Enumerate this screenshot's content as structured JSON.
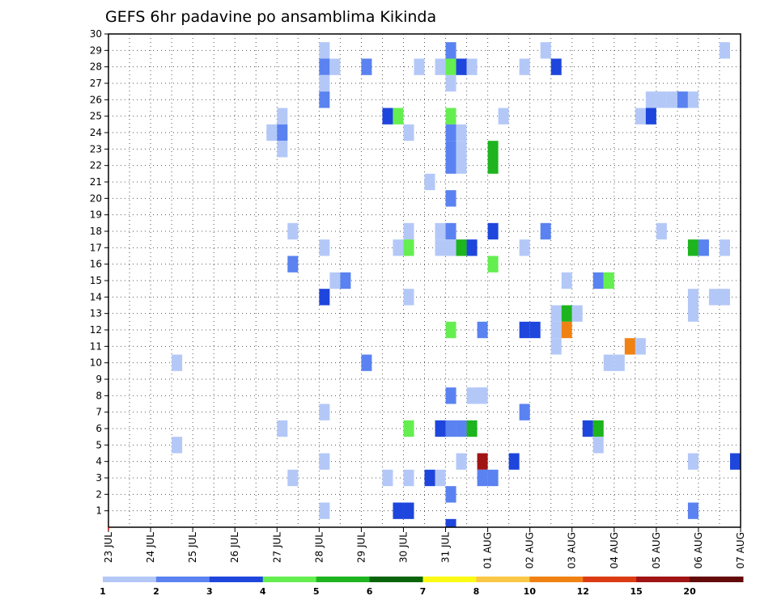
{
  "chart_data": {
    "type": "heatmap",
    "title": "GEFS 6hr padavine po ansamblima Kikinda",
    "xlabel": "",
    "ylabel": "",
    "x_tick_labels": [
      "23 JUL",
      "24 JUL",
      "25 JUL",
      "26 JUL",
      "27 JUL",
      "28 JUL",
      "29 JUL",
      "30 JUL",
      "31 JUL",
      "01 AUG",
      "02 AUG",
      "03 AUG",
      "04 AUG",
      "05 AUG",
      "06 AUG",
      "07 AUG"
    ],
    "y_tick_labels": [
      "1",
      "2",
      "3",
      "4",
      "5",
      "6",
      "7",
      "8",
      "9",
      "10",
      "11",
      "12",
      "13",
      "14",
      "15",
      "16",
      "17",
      "18",
      "19",
      "20",
      "21",
      "22",
      "23",
      "24",
      "25",
      "26",
      "27",
      "28",
      "29",
      "30"
    ],
    "xlim": [
      "23 JUL 00Z",
      "07 AUG 00Z"
    ],
    "ylim": [
      0,
      30
    ],
    "grid": true,
    "time_step_hours": 6,
    "legend": {
      "placement": "bottom",
      "labels": [
        "1",
        "2",
        "3",
        "4",
        "5",
        "6",
        "7",
        "8",
        "10",
        "12",
        "15",
        "20"
      ],
      "colors": [
        "#b4c8f8",
        "#5a82f0",
        "#1e46dc",
        "#64ee50",
        "#1eb41e",
        "#0a640a",
        "#fafa14",
        "#fac846",
        "#f08214",
        "#dc3c14",
        "#a01414",
        "#640a0a"
      ]
    },
    "cells": [
      {
        "time": "28 JUL 00Z",
        "member": 29,
        "bin": 1
      },
      {
        "time": "28 JUL 00Z",
        "member": 28,
        "bin": 2
      },
      {
        "time": "28 JUL 06Z",
        "member": 28,
        "bin": 1
      },
      {
        "time": "28 JUL 00Z",
        "member": 27,
        "bin": 1
      },
      {
        "time": "28 JUL 00Z",
        "member": 26,
        "bin": 2
      },
      {
        "time": "31 JUL 00Z",
        "member": 29,
        "bin": 2
      },
      {
        "time": "31 JUL 00Z",
        "member": 28,
        "bin": 4
      },
      {
        "time": "31 JUL 06Z",
        "member": 28,
        "bin": 3
      },
      {
        "time": "31 JUL 12Z",
        "member": 28,
        "bin": 1
      },
      {
        "time": "31 JUL 00Z",
        "member": 27,
        "bin": 1
      },
      {
        "time": "29 JUL 00Z",
        "member": 28,
        "bin": 2
      },
      {
        "time": "30 JUL 06Z",
        "member": 28,
        "bin": 1
      },
      {
        "time": "30 JUL 18Z",
        "member": 28,
        "bin": 1
      },
      {
        "time": "01 AUG 18Z",
        "member": 28,
        "bin": 1
      },
      {
        "time": "02 AUG 12Z",
        "member": 28,
        "bin": 3
      },
      {
        "time": "02 AUG 06Z",
        "member": 29,
        "bin": 1
      },
      {
        "time": "06 AUG 12Z",
        "member": 29,
        "bin": 1
      },
      {
        "time": "04 AUG 18Z",
        "member": 26,
        "bin": 1
      },
      {
        "time": "05 AUG 00Z",
        "member": 26,
        "bin": 1
      },
      {
        "time": "05 AUG 06Z",
        "member": 26,
        "bin": 1
      },
      {
        "time": "05 AUG 12Z",
        "member": 26,
        "bin": 2
      },
      {
        "time": "05 AUG 18Z",
        "member": 26,
        "bin": 1
      },
      {
        "time": "27 JUL 00Z",
        "member": 25,
        "bin": 1
      },
      {
        "time": "29 JUL 12Z",
        "member": 25,
        "bin": 3
      },
      {
        "time": "29 JUL 18Z",
        "member": 25,
        "bin": 4
      },
      {
        "time": "31 JUL 00Z",
        "member": 25,
        "bin": 4
      },
      {
        "time": "01 AUG 06Z",
        "member": 25,
        "bin": 1
      },
      {
        "time": "04 AUG 12Z",
        "member": 25,
        "bin": 1
      },
      {
        "time": "04 AUG 18Z",
        "member": 25,
        "bin": 3
      },
      {
        "time": "26 JUL 18Z",
        "member": 24,
        "bin": 1
      },
      {
        "time": "27 JUL 00Z",
        "member": 24,
        "bin": 2
      },
      {
        "time": "30 JUL 00Z",
        "member": 24,
        "bin": 1
      },
      {
        "time": "31 JUL 00Z",
        "member": 24,
        "bin": 2
      },
      {
        "time": "31 JUL 06Z",
        "member": 24,
        "bin": 1
      },
      {
        "time": "27 JUL 00Z",
        "member": 23,
        "bin": 1
      },
      {
        "time": "31 JUL 00Z",
        "member": 23,
        "bin": 2
      },
      {
        "time": "31 JUL 06Z",
        "member": 23,
        "bin": 1
      },
      {
        "time": "01 AUG 00Z",
        "member": 23,
        "bin": 5
      },
      {
        "time": "31 JUL 00Z",
        "member": 22,
        "bin": 2
      },
      {
        "time": "31 JUL 06Z",
        "member": 22,
        "bin": 1
      },
      {
        "time": "01 AUG 00Z",
        "member": 22,
        "bin": 5
      },
      {
        "time": "30 JUL 12Z",
        "member": 21,
        "bin": 1
      },
      {
        "time": "31 JUL 00Z",
        "member": 20,
        "bin": 2
      },
      {
        "time": "27 JUL 06Z",
        "member": 18,
        "bin": 1
      },
      {
        "time": "30 JUL 00Z",
        "member": 18,
        "bin": 1
      },
      {
        "time": "30 JUL 18Z",
        "member": 18,
        "bin": 1
      },
      {
        "time": "31 JUL 00Z",
        "member": 18,
        "bin": 2
      },
      {
        "time": "01 AUG 00Z",
        "member": 18,
        "bin": 3
      },
      {
        "time": "02 AUG 06Z",
        "member": 18,
        "bin": 2
      },
      {
        "time": "05 AUG 00Z",
        "member": 18,
        "bin": 1
      },
      {
        "time": "28 JUL 00Z",
        "member": 17,
        "bin": 1
      },
      {
        "time": "29 JUL 18Z",
        "member": 17,
        "bin": 1
      },
      {
        "time": "30 JUL 00Z",
        "member": 17,
        "bin": 4
      },
      {
        "time": "30 JUL 18Z",
        "member": 17,
        "bin": 1
      },
      {
        "time": "31 JUL 00Z",
        "member": 17,
        "bin": 1
      },
      {
        "time": "31 JUL 06Z",
        "member": 17,
        "bin": 5
      },
      {
        "time": "31 JUL 12Z",
        "member": 17,
        "bin": 3
      },
      {
        "time": "01 AUG 18Z",
        "member": 17,
        "bin": 1
      },
      {
        "time": "05 AUG 18Z",
        "member": 17,
        "bin": 5
      },
      {
        "time": "06 AUG 00Z",
        "member": 17,
        "bin": 2
      },
      {
        "time": "06 AUG 12Z",
        "member": 17,
        "bin": 1
      },
      {
        "time": "27 JUL 06Z",
        "member": 16,
        "bin": 2
      },
      {
        "time": "01 AUG 00Z",
        "member": 16,
        "bin": 4
      },
      {
        "time": "28 JUL 06Z",
        "member": 15,
        "bin": 1
      },
      {
        "time": "28 JUL 12Z",
        "member": 15,
        "bin": 2
      },
      {
        "time": "02 AUG 18Z",
        "member": 15,
        "bin": 1
      },
      {
        "time": "03 AUG 12Z",
        "member": 15,
        "bin": 2
      },
      {
        "time": "03 AUG 18Z",
        "member": 15,
        "bin": 4
      },
      {
        "time": "28 JUL 00Z",
        "member": 14,
        "bin": 3
      },
      {
        "time": "30 JUL 00Z",
        "member": 14,
        "bin": 1
      },
      {
        "time": "05 AUG 18Z",
        "member": 14,
        "bin": 1
      },
      {
        "time": "06 AUG 06Z",
        "member": 14,
        "bin": 1
      },
      {
        "time": "06 AUG 12Z",
        "member": 14,
        "bin": 1
      },
      {
        "time": "02 AUG 12Z",
        "member": 13,
        "bin": 1
      },
      {
        "time": "02 AUG 18Z",
        "member": 13,
        "bin": 5
      },
      {
        "time": "03 AUG 00Z",
        "member": 13,
        "bin": 1
      },
      {
        "time": "05 AUG 18Z",
        "member": 13,
        "bin": 1
      },
      {
        "time": "31 JUL 18Z",
        "member": 12,
        "bin": 2
      },
      {
        "time": "31 JUL 00Z",
        "member": 12,
        "bin": 4
      },
      {
        "time": "01 AUG 18Z",
        "member": 12,
        "bin": 3
      },
      {
        "time": "02 AUG 00Z",
        "member": 12,
        "bin": 3
      },
      {
        "time": "02 AUG 12Z",
        "member": 12,
        "bin": 1
      },
      {
        "time": "02 AUG 18Z",
        "member": 12,
        "bin": 9
      },
      {
        "time": "02 AUG 12Z",
        "member": 11,
        "bin": 1
      },
      {
        "time": "04 AUG 06Z",
        "member": 11,
        "bin": 9
      },
      {
        "time": "04 AUG 12Z",
        "member": 11,
        "bin": 1
      },
      {
        "time": "24 JUL 12Z",
        "member": 10,
        "bin": 1
      },
      {
        "time": "29 JUL 00Z",
        "member": 10,
        "bin": 2
      },
      {
        "time": "03 AUG 18Z",
        "member": 10,
        "bin": 1
      },
      {
        "time": "04 AUG 00Z",
        "member": 10,
        "bin": 1
      },
      {
        "time": "31 JUL 18Z",
        "member": 8,
        "bin": 1
      },
      {
        "time": "31 JUL 00Z",
        "member": 8,
        "bin": 2
      },
      {
        "time": "31 JUL 12Z",
        "member": 8,
        "bin": 1
      },
      {
        "time": "31 JUL 18Z",
        "member": 8,
        "bin": 1
      },
      {
        "time": "28 JUL 00Z",
        "member": 7,
        "bin": 1
      },
      {
        "time": "01 AUG 18Z",
        "member": 7,
        "bin": 2
      },
      {
        "time": "27 JUL 00Z",
        "member": 6,
        "bin": 1
      },
      {
        "time": "30 JUL 00Z",
        "member": 6,
        "bin": 4
      },
      {
        "time": "30 JUL 18Z",
        "member": 6,
        "bin": 3
      },
      {
        "time": "31 JUL 00Z",
        "member": 6,
        "bin": 2
      },
      {
        "time": "31 JUL 06Z",
        "member": 6,
        "bin": 2
      },
      {
        "time": "31 JUL 12Z",
        "member": 6,
        "bin": 5
      },
      {
        "time": "03 AUG 06Z",
        "member": 6,
        "bin": 3
      },
      {
        "time": "03 AUG 12Z",
        "member": 6,
        "bin": 5
      },
      {
        "time": "24 JUL 12Z",
        "member": 5,
        "bin": 1
      },
      {
        "time": "03 AUG 12Z",
        "member": 5,
        "bin": 1
      },
      {
        "time": "28 JUL 00Z",
        "member": 4,
        "bin": 1
      },
      {
        "time": "31 JUL 06Z",
        "member": 4,
        "bin": 1
      },
      {
        "time": "31 JUL 18Z",
        "member": 4,
        "bin": 11
      },
      {
        "time": "01 AUG 12Z",
        "member": 4,
        "bin": 3
      },
      {
        "time": "05 AUG 18Z",
        "member": 4,
        "bin": 1
      },
      {
        "time": "06 AUG 18Z",
        "member": 4,
        "bin": 3
      },
      {
        "time": "27 JUL 06Z",
        "member": 3,
        "bin": 1
      },
      {
        "time": "29 JUL 12Z",
        "member": 3,
        "bin": 1
      },
      {
        "time": "30 JUL 00Z",
        "member": 3,
        "bin": 1
      },
      {
        "time": "30 JUL 12Z",
        "member": 3,
        "bin": 3
      },
      {
        "time": "30 JUL 18Z",
        "member": 3,
        "bin": 1
      },
      {
        "time": "31 JUL 18Z",
        "member": 3,
        "bin": 2
      },
      {
        "time": "01 AUG 00Z",
        "member": 3,
        "bin": 2
      },
      {
        "time": "31 JUL 00Z",
        "member": 2,
        "bin": 2
      },
      {
        "time": "28 JUL 00Z",
        "member": 1,
        "bin": 1
      },
      {
        "time": "29 JUL 18Z",
        "member": 1,
        "bin": 3
      },
      {
        "time": "30 JUL 00Z",
        "member": 1,
        "bin": 3
      },
      {
        "time": "05 AUG 18Z",
        "member": 1,
        "bin": 2
      },
      {
        "time": "31 JUL 00Z",
        "member": 0,
        "bin": 3
      }
    ]
  }
}
